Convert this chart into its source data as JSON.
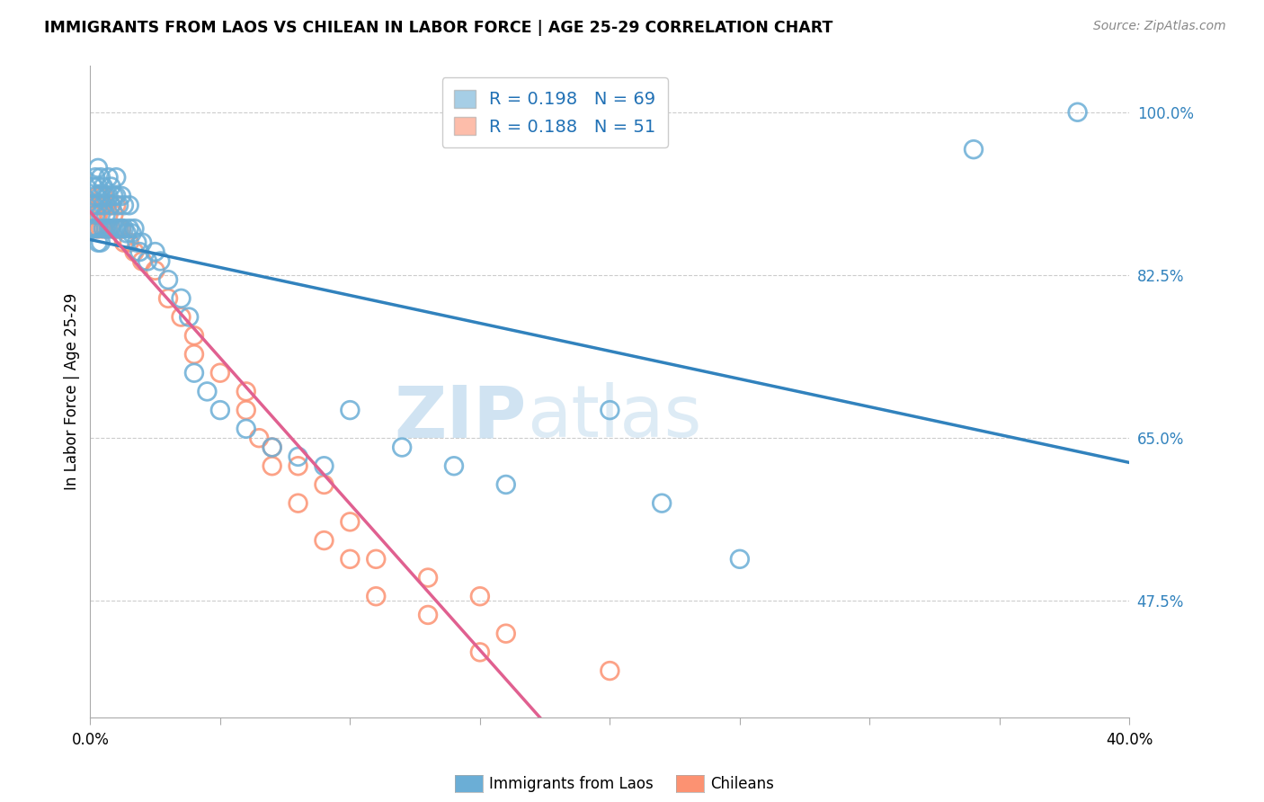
{
  "title": "IMMIGRANTS FROM LAOS VS CHILEAN IN LABOR FORCE | AGE 25-29 CORRELATION CHART",
  "source": "Source: ZipAtlas.com",
  "ylabel": "In Labor Force | Age 25-29",
  "ytick_labels": [
    "100.0%",
    "82.5%",
    "65.0%",
    "47.5%"
  ],
  "ytick_values": [
    1.0,
    0.825,
    0.65,
    0.475
  ],
  "xmin": 0.0,
  "xmax": 0.4,
  "ymin": 0.35,
  "ymax": 1.05,
  "color_laos": "#6baed6",
  "color_chilean": "#fc9272",
  "color_laos_line": "#3182bd",
  "color_chilean_line": "#e06090",
  "watermark_zip": "ZIP",
  "watermark_atlas": "atlas",
  "legend_r_laos": "0.198",
  "legend_n_laos": "69",
  "legend_r_chilean": "0.188",
  "legend_n_chilean": "51",
  "laos_x": [
    0.001,
    0.001,
    0.001,
    0.002,
    0.002,
    0.002,
    0.002,
    0.003,
    0.003,
    0.003,
    0.003,
    0.003,
    0.004,
    0.004,
    0.004,
    0.004,
    0.005,
    0.005,
    0.005,
    0.006,
    0.006,
    0.006,
    0.007,
    0.007,
    0.007,
    0.008,
    0.008,
    0.008,
    0.009,
    0.009,
    0.01,
    0.01,
    0.01,
    0.011,
    0.011,
    0.012,
    0.012,
    0.013,
    0.013,
    0.014,
    0.015,
    0.015,
    0.016,
    0.017,
    0.018,
    0.019,
    0.02,
    0.022,
    0.025,
    0.027,
    0.03,
    0.035,
    0.038,
    0.04,
    0.045,
    0.05,
    0.06,
    0.07,
    0.08,
    0.09,
    0.1,
    0.12,
    0.14,
    0.16,
    0.2,
    0.22,
    0.25,
    0.34,
    0.38
  ],
  "laos_y": [
    0.92,
    0.9,
    0.875,
    0.93,
    0.91,
    0.89,
    0.875,
    0.94,
    0.92,
    0.9,
    0.875,
    0.86,
    0.93,
    0.91,
    0.89,
    0.86,
    0.92,
    0.9,
    0.875,
    0.91,
    0.89,
    0.875,
    0.93,
    0.91,
    0.875,
    0.92,
    0.9,
    0.875,
    0.91,
    0.875,
    0.93,
    0.91,
    0.875,
    0.9,
    0.875,
    0.91,
    0.875,
    0.9,
    0.875,
    0.87,
    0.9,
    0.875,
    0.87,
    0.875,
    0.86,
    0.85,
    0.86,
    0.84,
    0.85,
    0.84,
    0.82,
    0.8,
    0.78,
    0.72,
    0.7,
    0.68,
    0.66,
    0.64,
    0.63,
    0.62,
    0.68,
    0.64,
    0.62,
    0.6,
    0.68,
    0.58,
    0.52,
    0.96,
    1.0
  ],
  "chilean_x": [
    0.001,
    0.001,
    0.002,
    0.002,
    0.003,
    0.003,
    0.003,
    0.004,
    0.004,
    0.005,
    0.005,
    0.006,
    0.006,
    0.007,
    0.007,
    0.008,
    0.008,
    0.009,
    0.01,
    0.01,
    0.011,
    0.012,
    0.013,
    0.015,
    0.017,
    0.02,
    0.025,
    0.03,
    0.035,
    0.04,
    0.05,
    0.06,
    0.07,
    0.08,
    0.09,
    0.1,
    0.11,
    0.13,
    0.15,
    0.16,
    0.04,
    0.06,
    0.065,
    0.07,
    0.08,
    0.09,
    0.1,
    0.11,
    0.13,
    0.15,
    0.2
  ],
  "chilean_y": [
    0.89,
    0.875,
    0.9,
    0.875,
    0.91,
    0.89,
    0.875,
    0.9,
    0.875,
    0.91,
    0.875,
    0.9,
    0.875,
    0.89,
    0.875,
    0.9,
    0.875,
    0.89,
    0.9,
    0.875,
    0.875,
    0.875,
    0.86,
    0.86,
    0.85,
    0.84,
    0.83,
    0.8,
    0.78,
    0.76,
    0.72,
    0.68,
    0.64,
    0.62,
    0.6,
    0.56,
    0.52,
    0.5,
    0.48,
    0.44,
    0.74,
    0.7,
    0.65,
    0.62,
    0.58,
    0.54,
    0.52,
    0.48,
    0.46,
    0.42,
    0.4
  ]
}
